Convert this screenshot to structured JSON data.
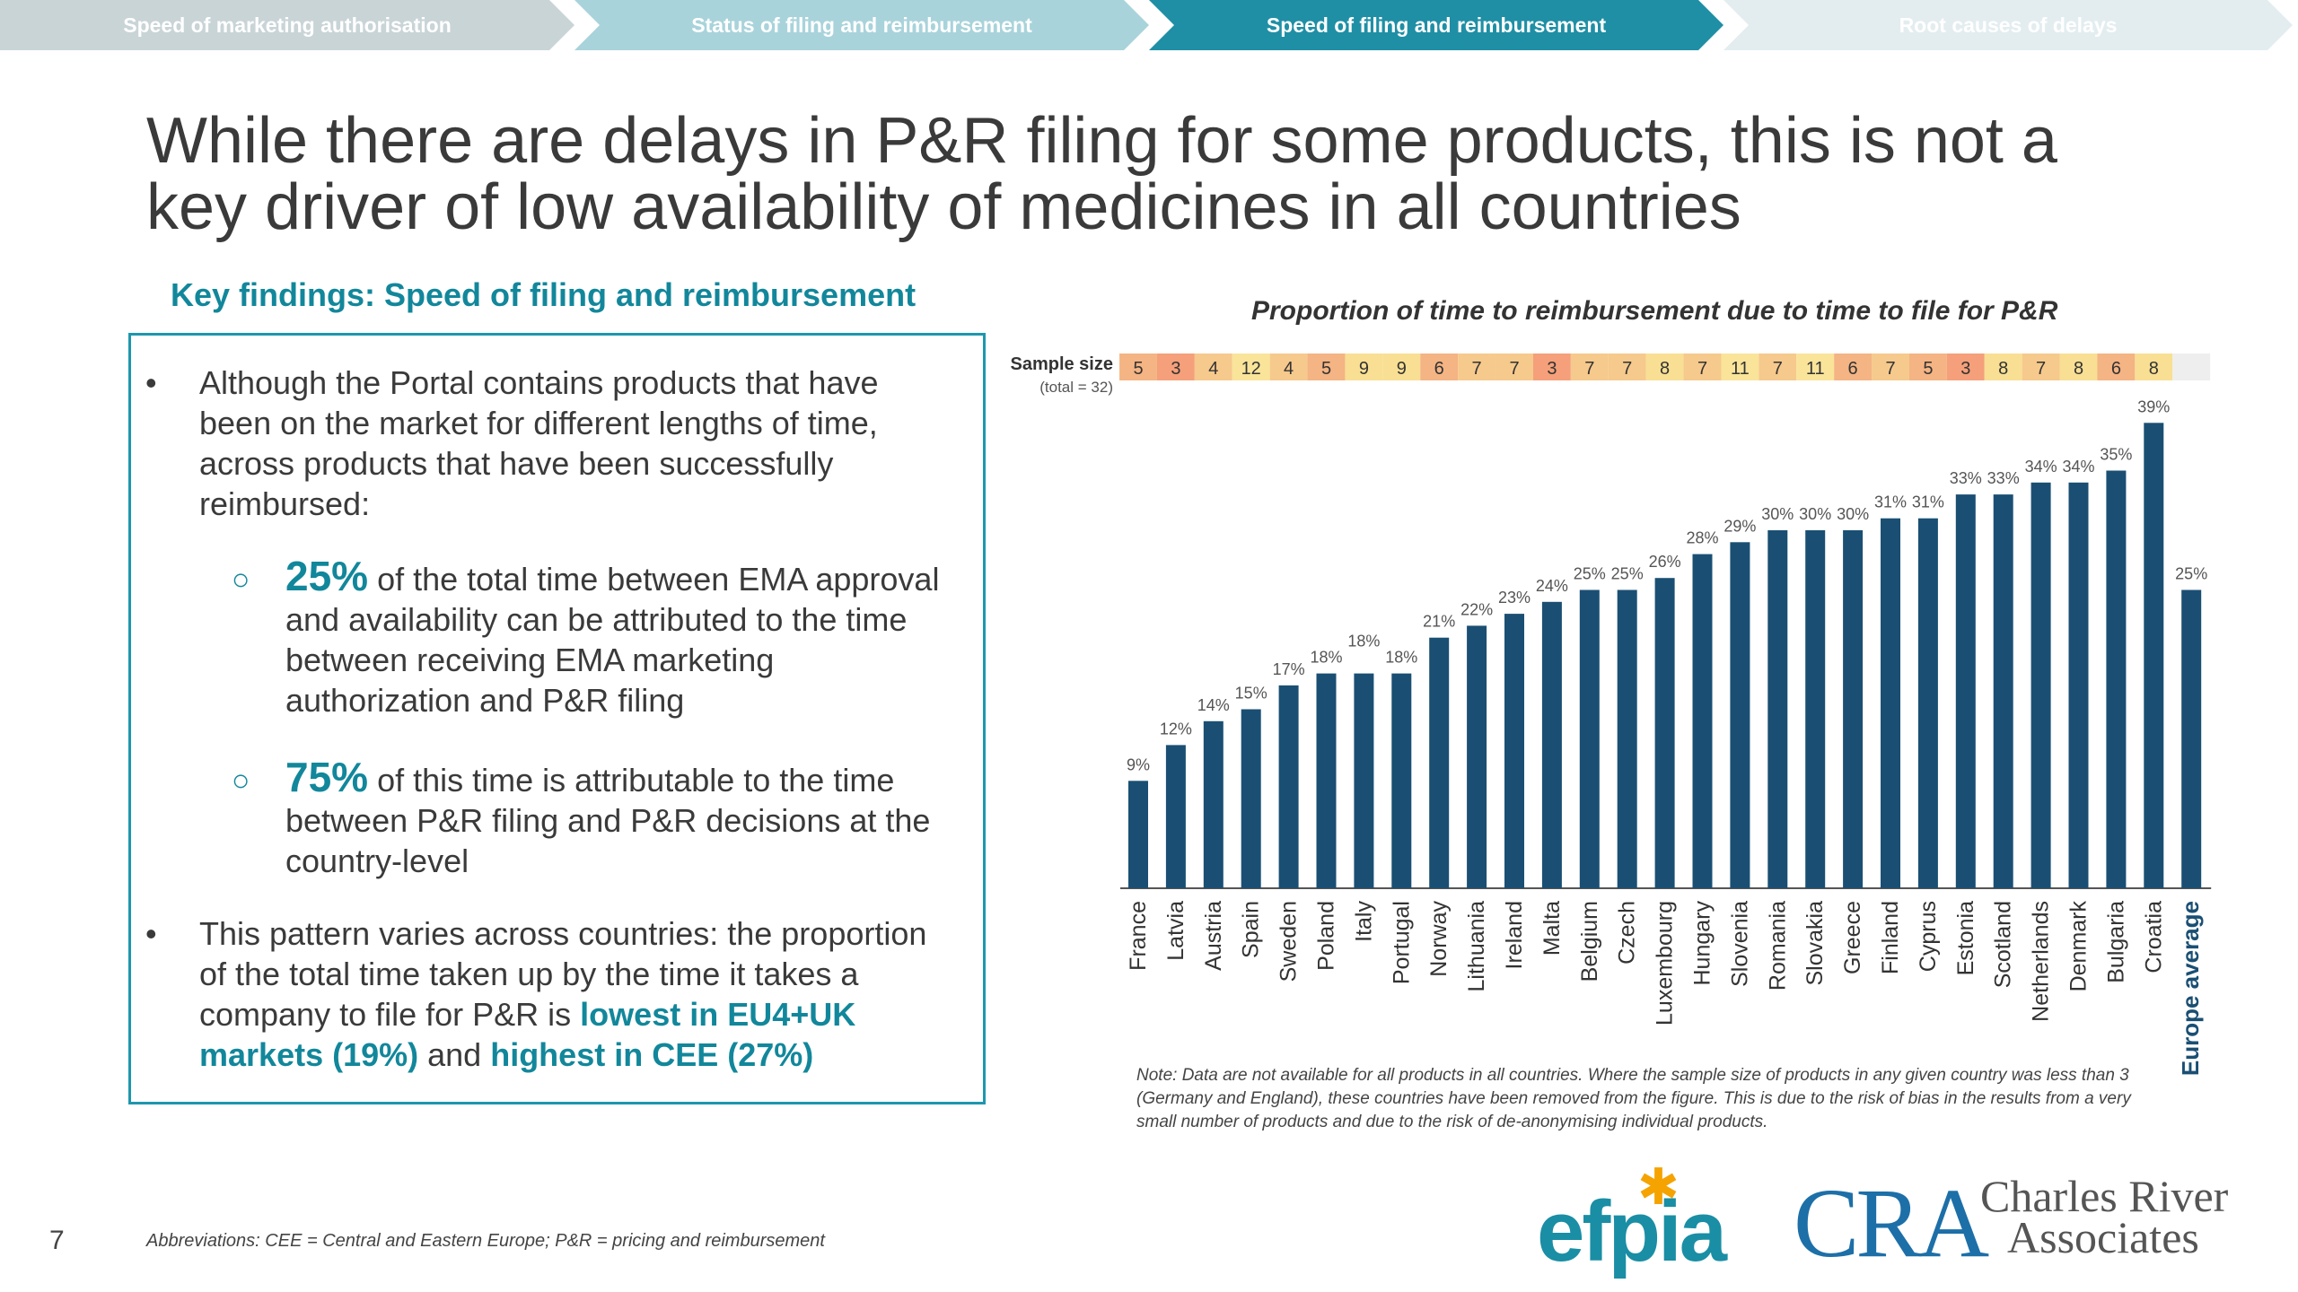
{
  "breadcrumb": {
    "items": [
      {
        "label": "Speed of marketing authorisation",
        "fill": "#c9d4d7",
        "text": "#ffffff"
      },
      {
        "label": "Status of filing and reimbursement",
        "fill": "#a9d3db",
        "text": "#ffffff"
      },
      {
        "label": "Speed of filing and reimbursement",
        "fill": "#1f8fa5",
        "text": "#ffffff"
      },
      {
        "label": "Root causes of delays",
        "fill": "#e3edf0",
        "text": "#ffffff"
      }
    ]
  },
  "title": {
    "line1": "While there are delays in P&R filing for some products, this is not a",
    "line2": "key driver of low availability of medicines in all countries"
  },
  "findings": {
    "heading": "Key findings: Speed of filing and reimbursement",
    "bullet1": {
      "line1": "Although the Portal contains products that have",
      "line2": "been on the market for different lengths of time,",
      "line3": "across products that have been successfully",
      "line4": "reimbursed:"
    },
    "sub1": {
      "big": "25%",
      "line1_rest": " of the total time between EMA approval",
      "line2": "and availability can be attributed to the time",
      "line3": "between receiving EMA marketing",
      "line4": "authorization and P&R filing"
    },
    "sub2": {
      "big": "75%",
      "line1_rest": " of this time is attributable to the time",
      "line2": "between P&R filing and P&R decisions at the",
      "line3": "country-level"
    },
    "bullet2": {
      "line1": "This pattern varies across countries: the proportion",
      "line2": "of the total time taken up by the time it takes a",
      "line3_a": "company to file for P&R is ",
      "line3_b": "lowest in EU4+UK",
      "line4_a": "markets (19%)",
      "line4_b": " and ",
      "line4_c": "highest in CEE (27%)"
    }
  },
  "chart_data": {
    "type": "bar",
    "title": "Proportion of time to reimbursement due to time to file for P&R",
    "sample_label": "Sample size",
    "sample_total": "(total = 32)",
    "categories": [
      "France",
      "Latvia",
      "Austria",
      "Spain",
      "Sweden",
      "Poland",
      "Italy",
      "Portugal",
      "Norway",
      "Lithuania",
      "Ireland",
      "Malta",
      "Belgium",
      "Czech",
      "Luxembourg",
      "Hungary",
      "Slovenia",
      "Romania",
      "Slovakia",
      "Greece",
      "Finland",
      "Cyprus",
      "Estonia",
      "Scotland",
      "Netherlands",
      "Denmark",
      "Bulgaria",
      "Croatia",
      "Europe average"
    ],
    "values": [
      9,
      12,
      14,
      15,
      17,
      18,
      18,
      18,
      21,
      22,
      23,
      24,
      25,
      25,
      26,
      28,
      29,
      30,
      30,
      30,
      31,
      31,
      33,
      33,
      34,
      34,
      35,
      39,
      25
    ],
    "labels": [
      "9%",
      "12%",
      "14%",
      "15%",
      "17%",
      "18%",
      "18%",
      "18%",
      "21%",
      "22%",
      "23%",
      "24%",
      "25%",
      "25%",
      "26%",
      "28%",
      "29%",
      "30%",
      "30%",
      "30%",
      "31%",
      "31%",
      "33%",
      "33%",
      "34%",
      "34%",
      "35%",
      "39%",
      "25%"
    ],
    "sample_sizes": [
      "5",
      "3",
      "4",
      "12",
      "4",
      "5",
      "9",
      "9",
      "6",
      "7",
      "7",
      "3",
      "7",
      "7",
      "8",
      "7",
      "11",
      "7",
      "11",
      "6",
      "7",
      "5",
      "3",
      "8",
      "7",
      "8",
      "6",
      "8",
      ""
    ],
    "sample_colors": [
      "#f4b483",
      "#f5a07a",
      "#f6c98c",
      "#f9e49a",
      "#f6c98c",
      "#f4b483",
      "#f8df93",
      "#f8df93",
      "#f4b483",
      "#f6c98c",
      "#f6c98c",
      "#f5a07a",
      "#f6c98c",
      "#f6c98c",
      "#f8df93",
      "#f6c98c",
      "#f9e49a",
      "#f6c98c",
      "#f9e49a",
      "#f4b483",
      "#f6c98c",
      "#f4b483",
      "#f5a07a",
      "#f8df93",
      "#f6c98c",
      "#f8df93",
      "#f4b483",
      "#f8df93",
      "#eeeeee"
    ],
    "highlight_category": "Europe average",
    "bar_color": "#1a4f73",
    "ylim": [
      0,
      40
    ],
    "grid": false,
    "xlabel": "",
    "ylabel": ""
  },
  "note": "Note: Data are not available for all products in all countries. Where the sample size of products in any given country was less than 3 (Germany and England), these countries have been removed from the figure. This is due to the risk of bias in the results from a very small number of products and due to the risk of de-anonymising individual products.",
  "footer": {
    "page_number": "7",
    "abbreviations": "Abbreviations: CEE = Central and Eastern Europe; P&R = pricing and reimbursement"
  },
  "logos": {
    "efpia": "efpia",
    "cra_mark": "CRA",
    "cra_name_line1": "Charles River",
    "cra_name_line2": "Associates"
  },
  "colors": {
    "accent": "#12879b",
    "bar": "#1a4f73",
    "efpia_blue": "#1a8ea4",
    "efpia_star": "#f5a300",
    "cra_blue": "#1d6fa8"
  }
}
